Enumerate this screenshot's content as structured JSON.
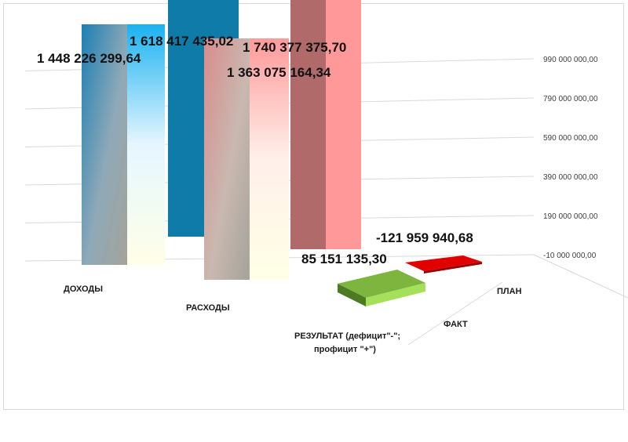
{
  "chart_data": {
    "type": "bar",
    "title": "",
    "categories": [
      "ДОХОДЫ",
      "РАСХОДЫ",
      "РЕЗУЛЬТАТ (дефицит\"-\"; профицит \"+\")"
    ],
    "category_lines": [
      [
        "ДОХОДЫ"
      ],
      [
        "РАСХОДЫ"
      ],
      [
        "РЕЗУЛЬТАТ (дефицит\"-\";",
        "профицит \"+\")"
      ]
    ],
    "series": [
      {
        "name": "ФАКТ",
        "values": [
          1448226299.64,
          1363075164.34,
          85151135.3
        ]
      },
      {
        "name": "ПЛАН",
        "values": [
          1618417435.02,
          1740377375.7,
          -121959940.68
        ]
      }
    ],
    "value_labels": {
      "ФАКТ": [
        "1 448 226 299,64",
        "1 363 075 164,34",
        "85 151 135,30"
      ],
      "ПЛАН": [
        "1 618 417 435,02",
        "1 740 377 375,70",
        "-121 959 940,68"
      ]
    },
    "y_ticks": [
      "-10 000 000,00",
      "190 000 000,00",
      "390 000 000,00",
      "590 000 000,00",
      "790 000 000,00",
      "990 000 000,00"
    ],
    "grid": true,
    "three_d": true
  },
  "colors": {
    "income_fact_top": "#1aa7e2",
    "income_fact_bottom": "#a6a6a6",
    "income_plan": "#0f7ba8",
    "expense_fact_top": "#e8a0a0",
    "expense_plan": "#ff9999",
    "result_fact": "#7ab648",
    "result_plan": "#e00000",
    "grid": "#d9d9d9"
  }
}
